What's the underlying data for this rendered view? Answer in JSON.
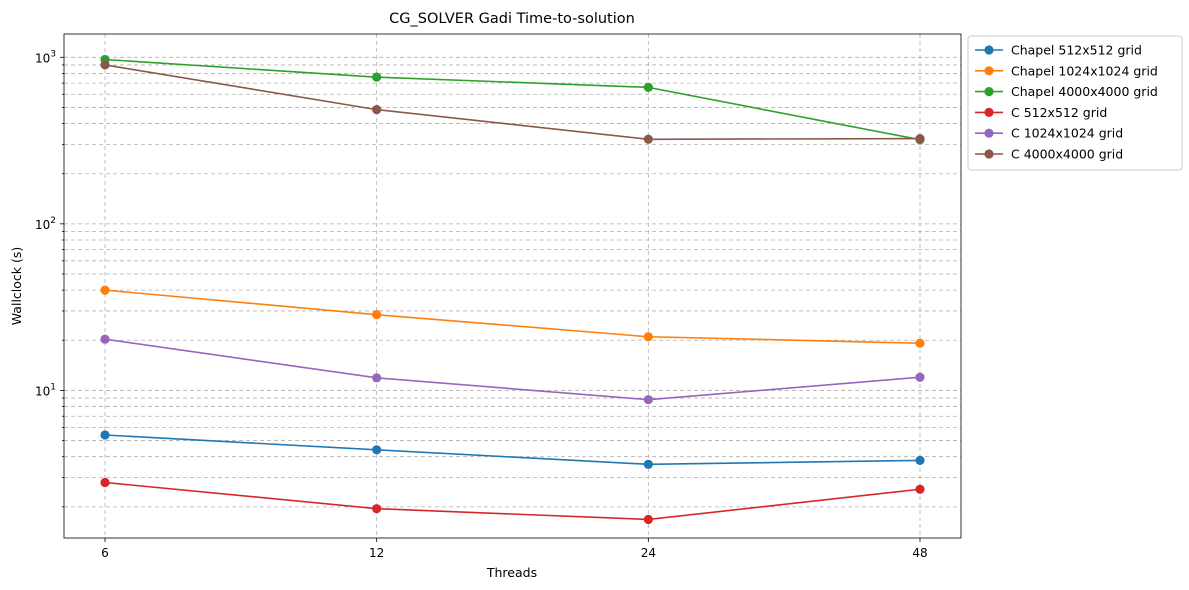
{
  "chart_data": {
    "type": "line",
    "title": "CG_SOLVER Gadi Time-to-solution",
    "xlabel": "Threads",
    "ylabel": "Wallclock (s)",
    "x": [
      6,
      12,
      24,
      48
    ],
    "x_tick_labels": [
      "6",
      "12",
      "24",
      "48"
    ],
    "x_scale": "categorical",
    "y_scale": "log",
    "ylim": [
      1.3,
      1380
    ],
    "y_major_ticks": [
      10,
      100,
      1000
    ],
    "y_tick_labels": [
      {
        "base": "10",
        "exp": "1"
      },
      {
        "base": "10",
        "exp": "2"
      },
      {
        "base": "10",
        "exp": "3"
      }
    ],
    "grid": true,
    "legend": "outside upper right",
    "series": [
      {
        "name": "Chapel 512x512 grid",
        "color": "#1f77b4",
        "values": [
          5.4,
          4.4,
          3.6,
          3.8
        ]
      },
      {
        "name": "Chapel 1024x1024 grid",
        "color": "#ff7f0e",
        "values": [
          40,
          28.5,
          21,
          19.2
        ]
      },
      {
        "name": "Chapel 4000x4000 grid",
        "color": "#2ca02c",
        "values": [
          970,
          760,
          660,
          320
        ]
      },
      {
        "name": "C 512x512 grid",
        "color": "#d62728",
        "values": [
          2.8,
          1.95,
          1.68,
          2.55
        ]
      },
      {
        "name": "C 1024x1024 grid",
        "color": "#9467bd",
        "values": [
          20.3,
          11.9,
          8.8,
          12.0
        ]
      },
      {
        "name": "C 4000x4000 grid",
        "color": "#8c564b",
        "values": [
          900,
          485,
          322,
          325
        ]
      }
    ]
  }
}
